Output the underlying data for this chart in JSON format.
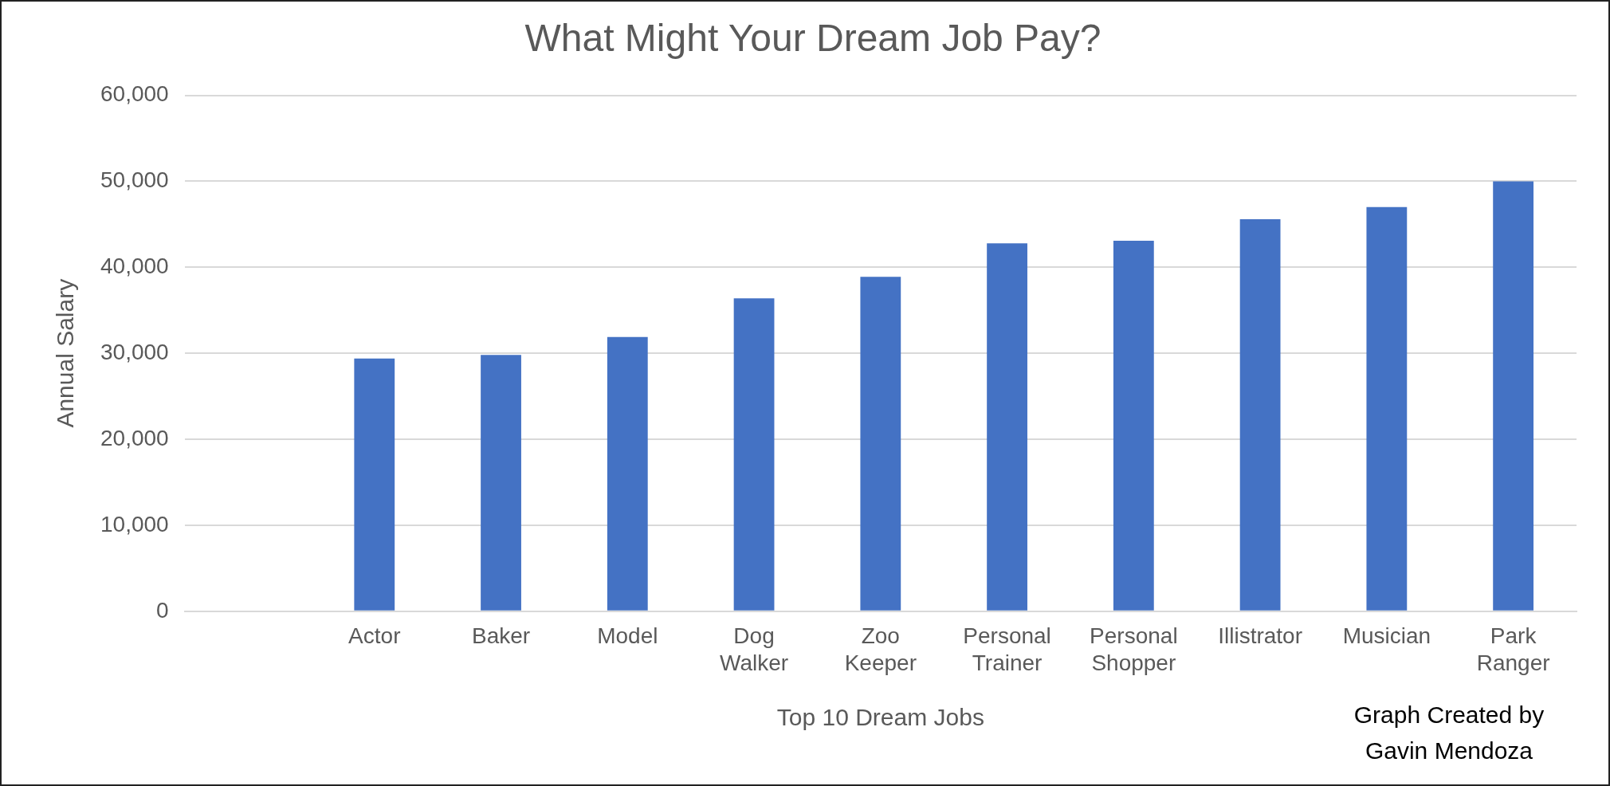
{
  "chart_data": {
    "type": "bar",
    "title": "What Might Your Dream Job Pay?",
    "xlabel": "Top 10 Dream Jobs",
    "ylabel": "Annual Salary",
    "categories": [
      null,
      "Actor",
      "Baker",
      "Model",
      "Dog Walker",
      "Zoo Keeper",
      "Personal Trainer",
      "Personal Shopper",
      "Illistrator",
      "Musician",
      "Park Ranger"
    ],
    "values": [
      null,
      29400,
      29800,
      31900,
      36400,
      38900,
      42800,
      43100,
      45600,
      47000,
      50000
    ],
    "color": "#4472c4",
    "ylim": [
      0,
      60000
    ],
    "yticks": [
      {
        "value": 0,
        "label": "0"
      },
      {
        "value": 10000,
        "label": "10,000"
      },
      {
        "value": 20000,
        "label": "20,000"
      },
      {
        "value": 30000,
        "label": "30,000"
      },
      {
        "value": 40000,
        "label": "40,000"
      },
      {
        "value": 50000,
        "label": "50,000"
      },
      {
        "value": 60000,
        "label": "60,000"
      }
    ],
    "grid": "y",
    "annotations": [
      "Graph Created by Gavin Mendoza"
    ]
  }
}
